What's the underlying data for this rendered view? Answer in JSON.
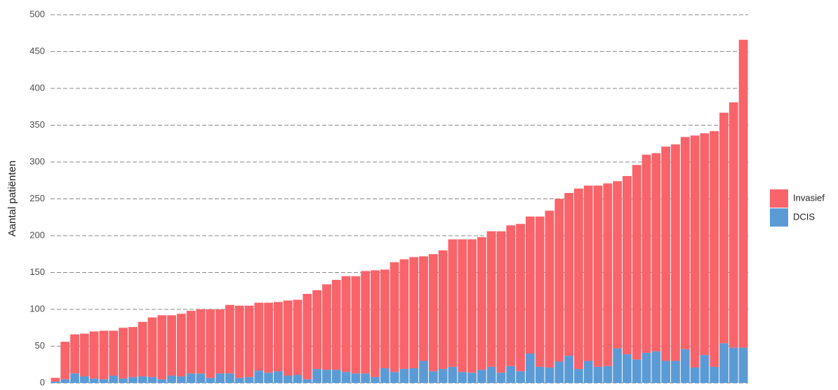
{
  "chart_data": {
    "type": "stacked-bar",
    "y_label": "Aantal patiënten",
    "categories": [
      null,
      null,
      null,
      null,
      null,
      null,
      null,
      null,
      null,
      null,
      null,
      null,
      null,
      null,
      null,
      null,
      null,
      null,
      null,
      null,
      null,
      null,
      null,
      null,
      null,
      null,
      null,
      null,
      null,
      null,
      null,
      null,
      null,
      null,
      null,
      null,
      null,
      null,
      null,
      null,
      null,
      null,
      null,
      null,
      null,
      null,
      null,
      null,
      null,
      null,
      null,
      null,
      null,
      null,
      null,
      null,
      null,
      null,
      null,
      null,
      null,
      null,
      null,
      null,
      null,
      null,
      null,
      null,
      null,
      null,
      null,
      null
    ],
    "series": [
      {
        "name": "DCIS",
        "color": "#5b9bd5",
        "values": [
          2,
          5,
          13,
          9,
          6,
          5,
          10,
          6,
          8,
          9,
          8,
          5,
          10,
          9,
          13,
          13,
          7,
          13,
          13,
          7,
          8,
          17,
          14,
          16,
          10,
          11,
          5,
          19,
          18,
          18,
          15,
          13,
          13,
          8,
          20,
          15,
          19,
          20,
          30,
          16,
          19,
          22,
          15,
          14,
          18,
          22,
          14,
          23,
          16,
          40,
          22,
          21,
          29,
          37,
          19,
          30,
          22,
          23,
          47,
          39,
          32,
          41,
          43,
          30,
          30,
          46,
          21,
          38,
          22,
          54,
          48,
          48
        ]
      },
      {
        "name": "Invasief",
        "color": "#f8646a",
        "values": [
          5,
          51,
          53,
          58,
          64,
          66,
          61,
          69,
          68,
          74,
          81,
          87,
          82,
          85,
          85,
          87,
          93,
          87,
          93,
          98,
          97,
          92,
          95,
          94,
          102,
          102,
          116,
          107,
          116,
          122,
          130,
          132,
          139,
          145,
          134,
          149,
          149,
          151,
          142,
          159,
          161,
          173,
          180,
          181,
          180,
          184,
          192,
          191,
          200,
          186,
          204,
          213,
          221,
          221,
          245,
          238,
          246,
          248,
          227,
          242,
          264,
          269,
          269,
          291,
          294,
          288,
          315,
          301,
          320,
          313,
          333,
          418
        ]
      }
    ],
    "ylim": [
      0,
      500
    ],
    "yticks": [
      0,
      50,
      100,
      150,
      200,
      250,
      300,
      350,
      400,
      450,
      500
    ],
    "grid": true,
    "legend": "right"
  }
}
